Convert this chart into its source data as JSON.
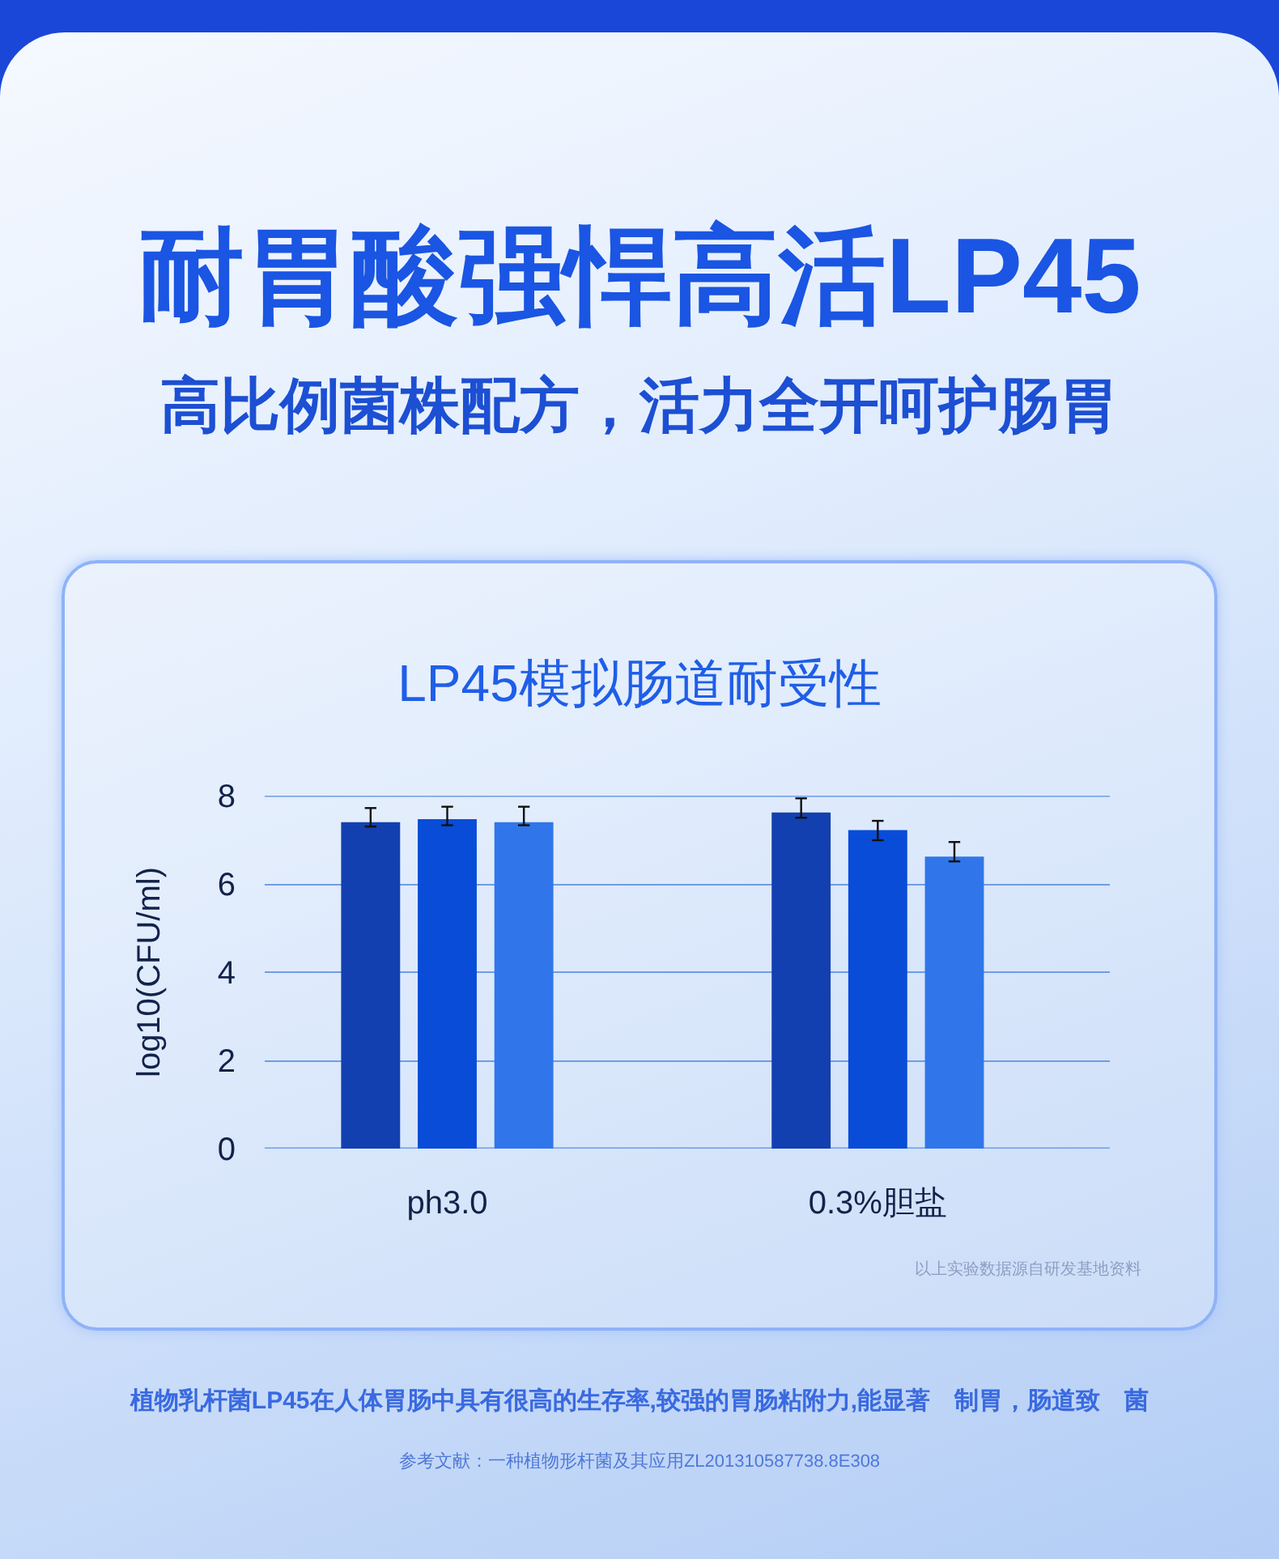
{
  "chart_data": {
    "type": "bar",
    "title": "耐胃酸强悍高活LP45",
    "subtitle": "高比例菌株配方，活力全开呵护肠胃",
    "annotations": [
      "LP45模拟肠道耐受性",
      "以上实验数据源自研发基地资料",
      "植物乳杆菌LP45在人体胃肠中具有很高的生存率,较强的胃肠粘附力,能显著　制胃，肠道致　菌",
      "参考文献：一种植物形杆菌及其应用ZL201310587738.8E308"
    ],
    "ylabel": "log10(CFU/ml)",
    "categories": [
      "ph3.0",
      "0.3%胆盐"
    ],
    "series": [
      {
        "color": "#1240b0",
        "values": [
          7.4,
          7.62
        ],
        "errors": [
          [
            7.3,
            7.72
          ],
          [
            7.5,
            7.94
          ]
        ]
      },
      {
        "color": "#084cd8",
        "values": [
          7.47,
          7.22
        ],
        "errors": [
          [
            7.33,
            7.75
          ],
          [
            6.99,
            7.43
          ]
        ]
      },
      {
        "color": "#3076ea",
        "values": [
          7.4,
          6.62
        ],
        "errors": [
          [
            7.33,
            7.75
          ],
          [
            6.51,
            6.95
          ]
        ]
      }
    ],
    "ylim": [
      0,
      8
    ],
    "yticks": [
      0,
      2,
      4,
      6,
      8
    ],
    "grid": "y"
  }
}
